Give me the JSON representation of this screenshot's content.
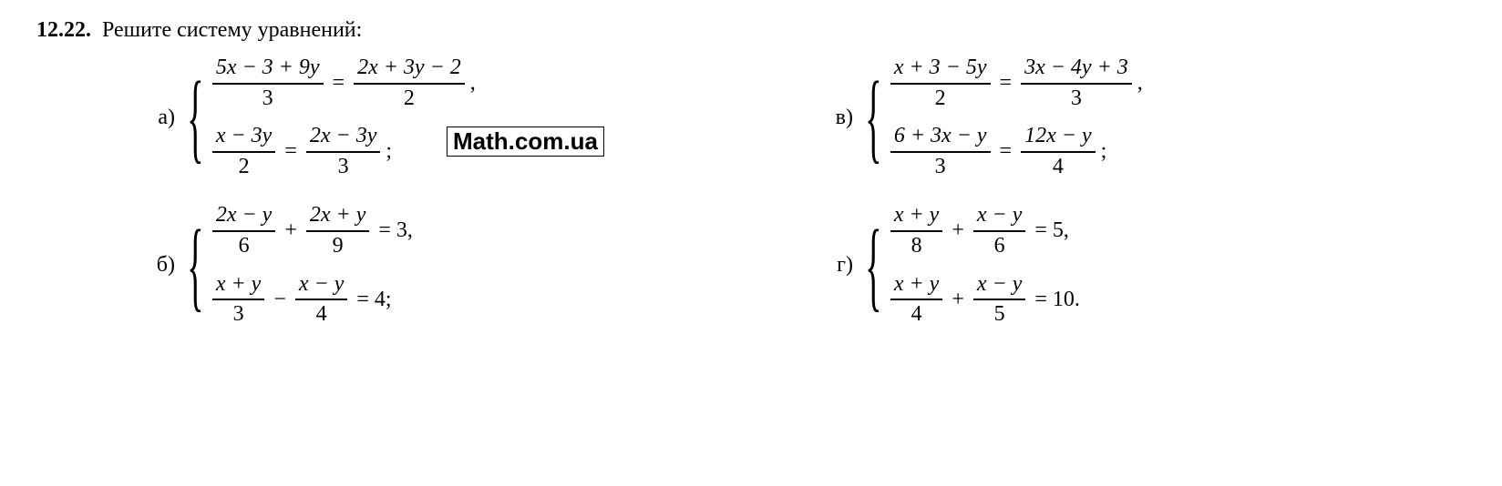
{
  "heading": "12.22.",
  "prompt": "Решите систему уравнений:",
  "watermark": "Math.com.ua",
  "problems": {
    "a": {
      "label": "а)",
      "eq1": {
        "f1_num": "5x − 3 + 9y",
        "f1_den": "3",
        "f2_num": "2x + 3y − 2",
        "f2_den": "2",
        "mid": "=",
        "tail": ","
      },
      "eq2": {
        "f1_num": "x − 3y",
        "f1_den": "2",
        "f2_num": "2x − 3y",
        "f2_den": "3",
        "mid": "=",
        "tail": ";"
      }
    },
    "v": {
      "label": "в)",
      "eq1": {
        "f1_num": "x + 3 − 5y",
        "f1_den": "2",
        "f2_num": "3x − 4y + 3",
        "f2_den": "3",
        "mid": "=",
        "tail": ","
      },
      "eq2": {
        "f1_num": "6 + 3x − y",
        "f1_den": "3",
        "f2_num": "12x − y",
        "f2_den": "4",
        "mid": "=",
        "tail": ";"
      }
    },
    "b": {
      "label": "б)",
      "eq1": {
        "f1_num": "2x − y",
        "f1_den": "6",
        "f2_num": "2x + y",
        "f2_den": "9",
        "mid": "+",
        "rhs": "= 3,",
        "tail": ""
      },
      "eq2": {
        "f1_num": "x + y",
        "f1_den": "3",
        "f2_num": "x − y",
        "f2_den": "4",
        "mid": "−",
        "rhs": "= 4;",
        "tail": ""
      }
    },
    "g": {
      "label": "г)",
      "eq1": {
        "f1_num": "x + y",
        "f1_den": "8",
        "f2_num": "x − y",
        "f2_den": "6",
        "mid": "+",
        "rhs": "= 5,",
        "tail": ""
      },
      "eq2": {
        "f1_num": "x + y",
        "f1_den": "4",
        "f2_num": "x − y",
        "f2_den": "5",
        "mid": "+",
        "rhs": "= 10.",
        "tail": ""
      }
    }
  }
}
